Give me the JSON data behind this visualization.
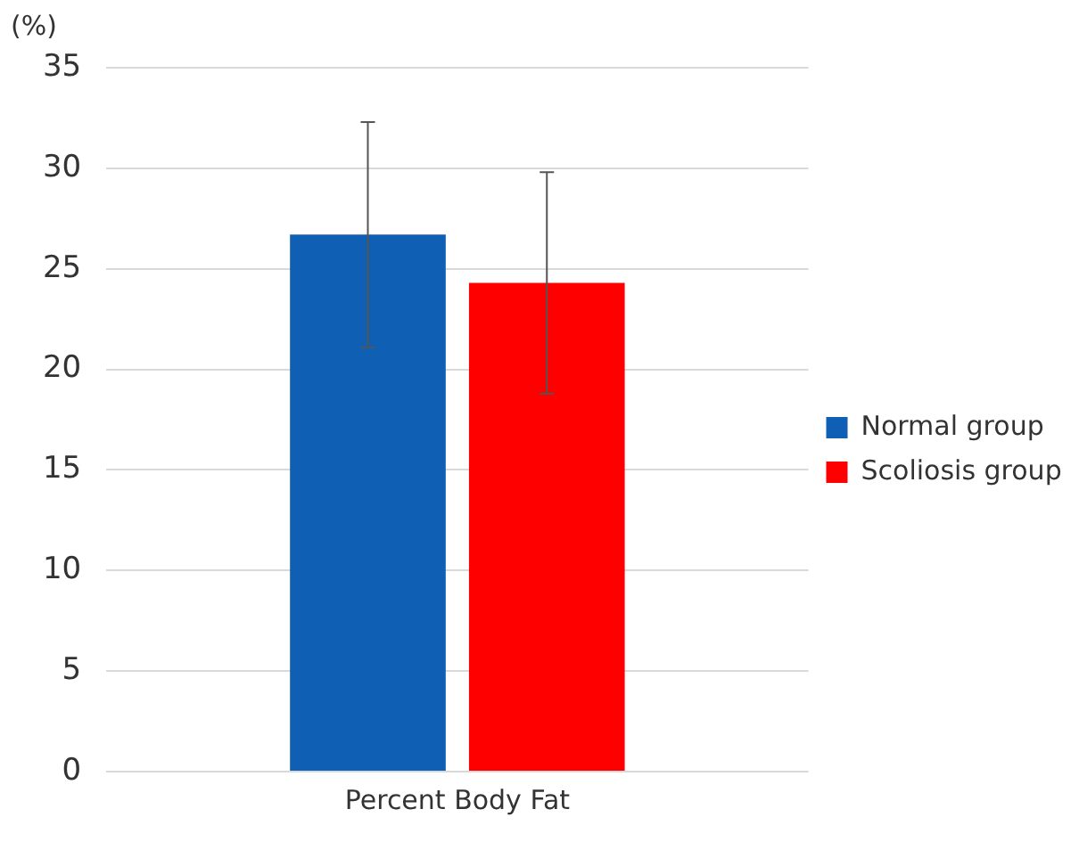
{
  "chart_data": {
    "type": "bar",
    "ylabel": "(%)",
    "categories": [
      "Percent Body Fat"
    ],
    "series": [
      {
        "name": "Normal group",
        "color": "#0f5fb4",
        "values": [
          26.7
        ],
        "errors": [
          5.6
        ]
      },
      {
        "name": "Scoliosis group",
        "color": "#ff0000",
        "values": [
          24.3
        ],
        "errors": [
          5.5
        ]
      }
    ],
    "ylim": [
      0,
      35
    ],
    "yticks": [
      0,
      5,
      10,
      15,
      20,
      25,
      30,
      35
    ],
    "grid": "y",
    "legend": "right"
  }
}
